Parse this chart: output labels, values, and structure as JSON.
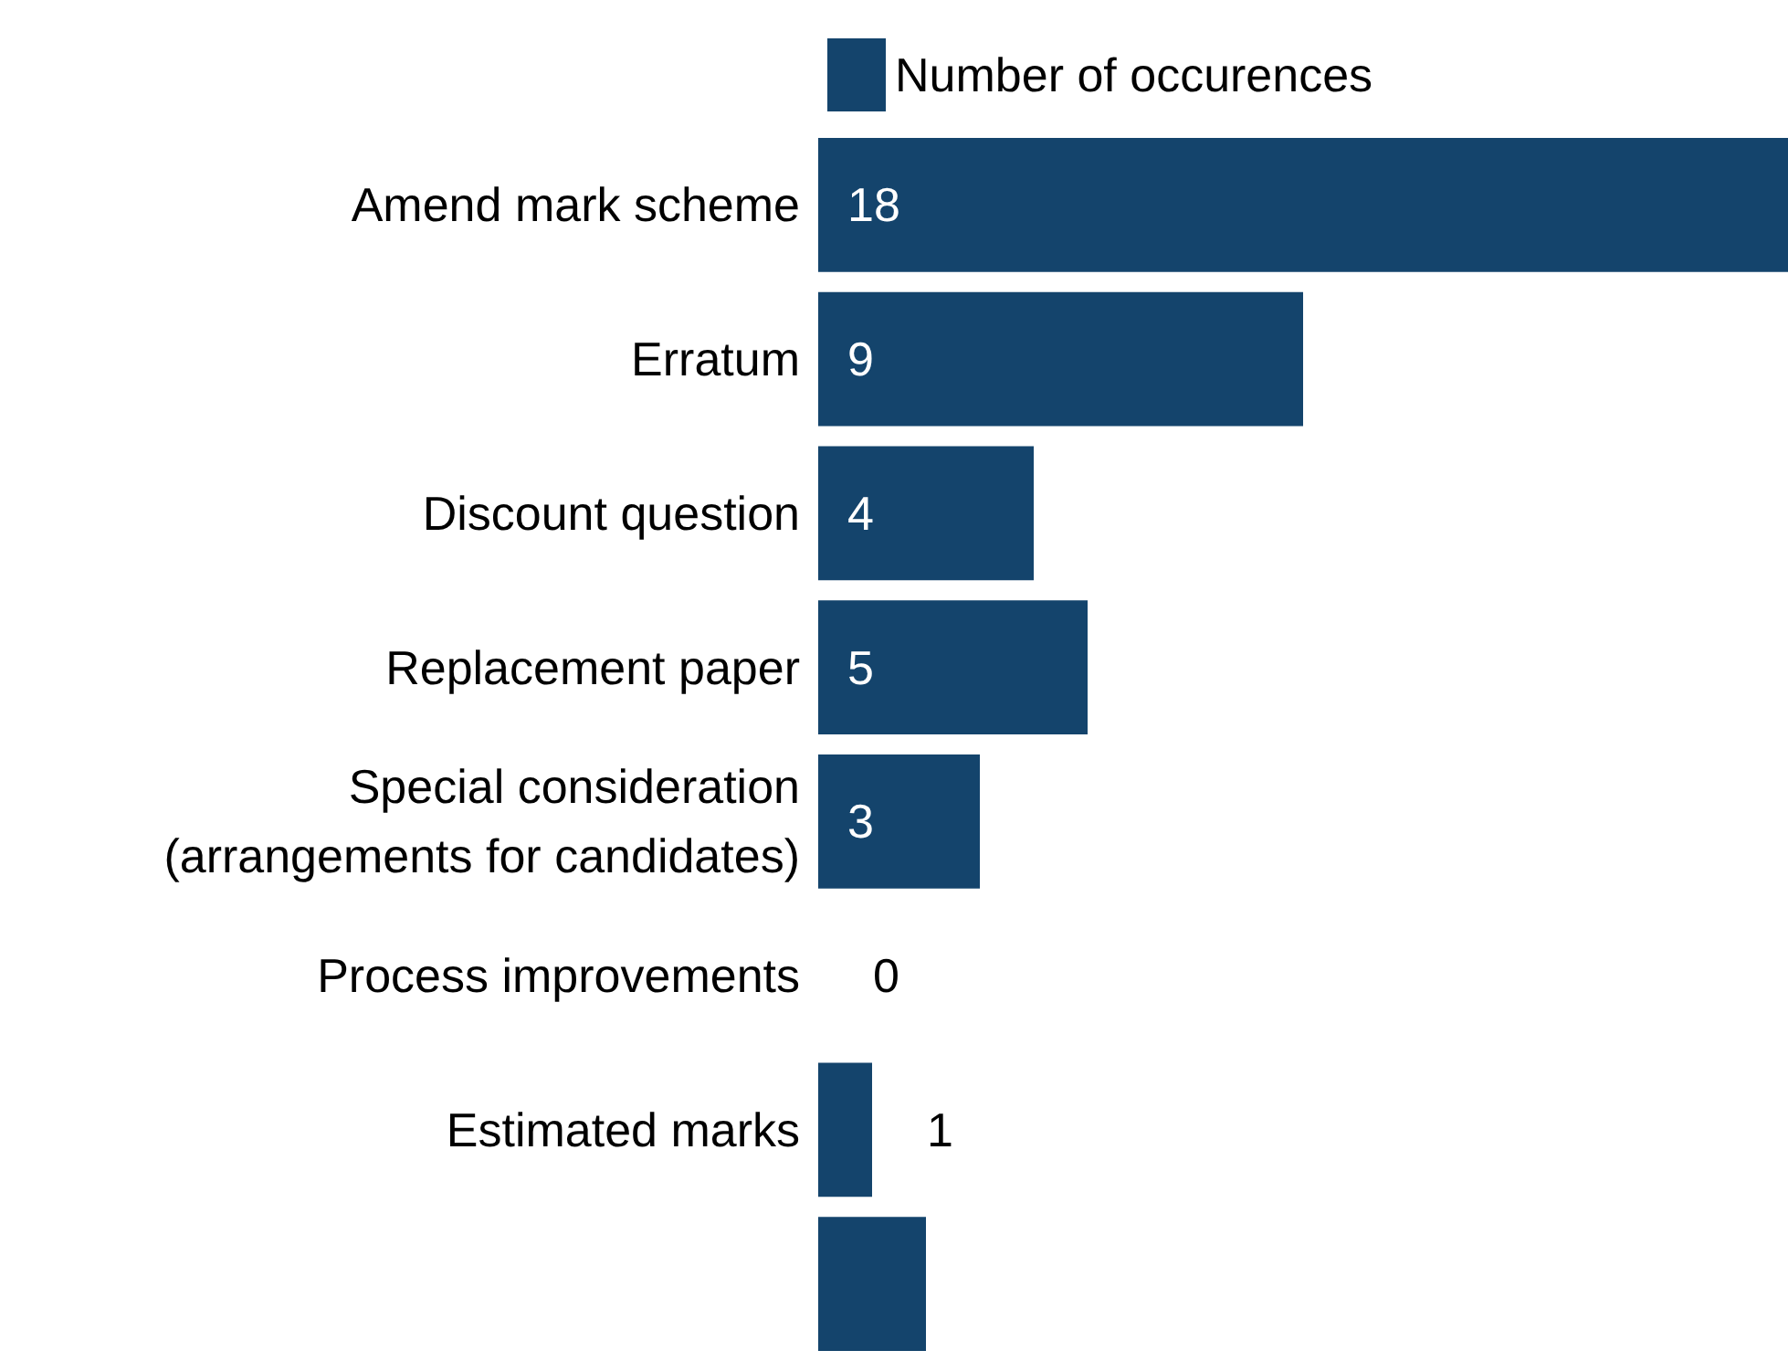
{
  "chart_data": {
    "type": "bar",
    "orientation": "horizontal",
    "categories": [
      "Amend mark scheme",
      "Erratum",
      "Discount question",
      "Replacement paper",
      "Special consideration (arrangements for candidates)",
      "Process improvements",
      "Estimated marks",
      null
    ],
    "series": [
      {
        "name": "Number of occurences",
        "color": "#14446c",
        "values": [
          18,
          9,
          4,
          5,
          3,
          0,
          1,
          2
        ],
        "value_labels": [
          "18",
          "9",
          "4",
          "5",
          "3",
          "0",
          "1",
          null
        ]
      }
    ],
    "xlim": [
      0,
      18
    ],
    "tick_labels": "y",
    "legend": "top"
  }
}
